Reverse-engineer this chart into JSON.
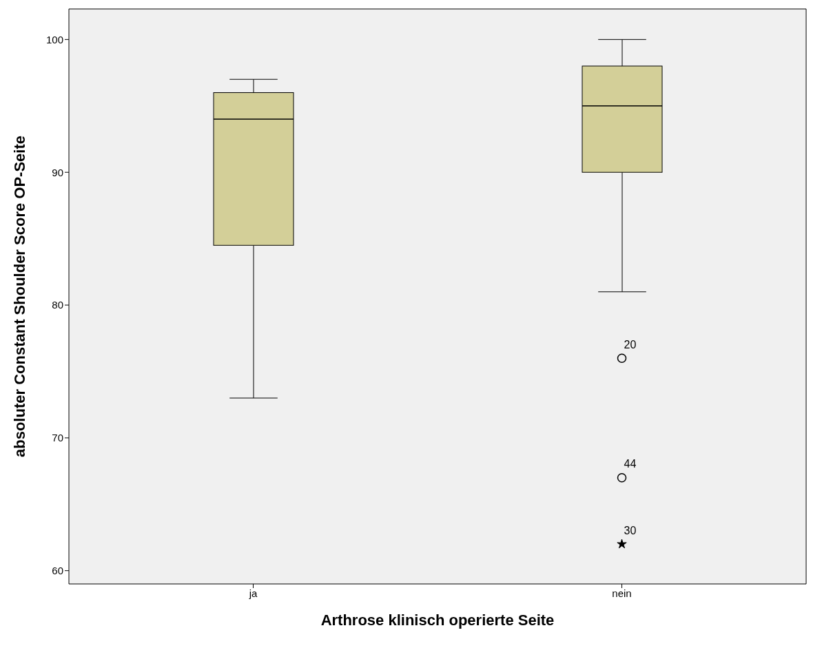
{
  "chart_data": {
    "type": "box",
    "xlabel": "Arthrose klinisch operierte Seite",
    "ylabel": "absoluter Constant Shoulder Score OP-Seite",
    "categories": [
      "ja",
      "nein"
    ],
    "series": [
      {
        "color": "#d3cf98",
        "boxes": [
          {
            "low": 73,
            "q1": 84.5,
            "median": 94,
            "q3": 96,
            "high": 97
          },
          {
            "low": 81,
            "q1": 90,
            "median": 95,
            "q3": 98,
            "high": 100,
            "outliers": [
              76,
              67
            ]
          }
        ]
      },
      {
        "type": "scatter",
        "color": "#000000",
        "x": [
          "nein"
        ],
        "values": [
          62
        ],
        "marker": "star"
      }
    ],
    "ylim": [
      59,
      102.3
    ],
    "yticks": [
      60,
      70,
      80,
      90,
      100
    ],
    "grid": false,
    "legend": false,
    "annotations": [
      "20",
      "44",
      "30"
    ]
  }
}
